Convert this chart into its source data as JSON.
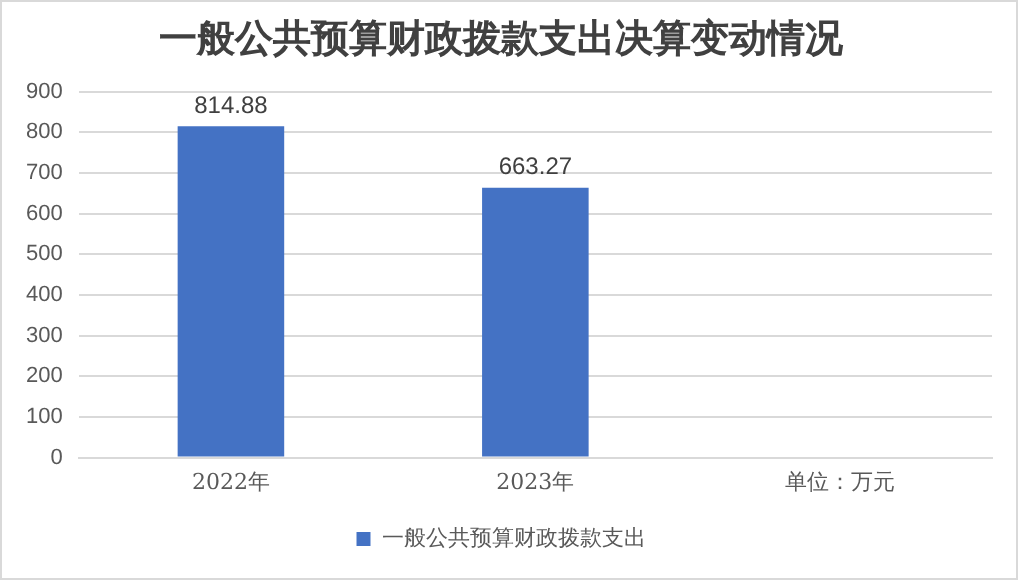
{
  "chart_data": {
    "type": "bar",
    "title": "一般公共预算财政拨款支出决算变动情况",
    "categories": [
      "2022年",
      "2023年",
      "单位：万元"
    ],
    "series": [
      {
        "name": "一般公共预算财政拨款支出",
        "color": "#4472c4",
        "values": [
          814.88,
          663.27,
          null
        ]
      }
    ],
    "ylim": [
      0,
      900
    ],
    "yticks": [
      0,
      100,
      200,
      300,
      400,
      500,
      600,
      700,
      800,
      900
    ],
    "grid": "y",
    "legend": "bottom",
    "data_labels": true
  }
}
